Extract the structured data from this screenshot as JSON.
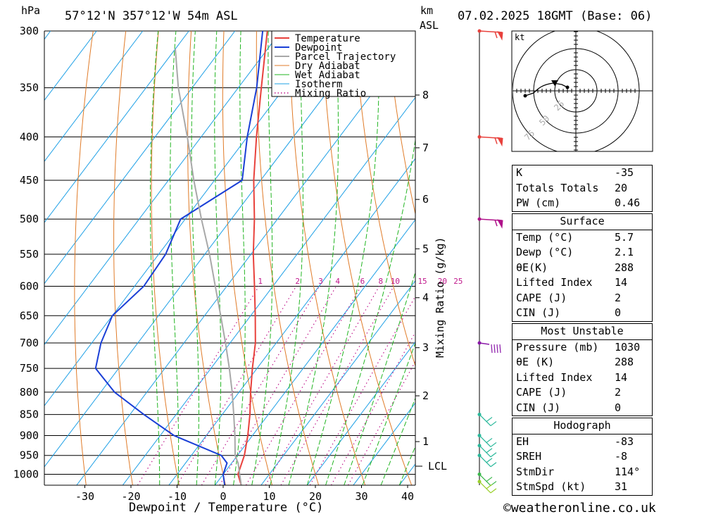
{
  "header": {
    "hpa_label": "hPa",
    "location": "57°12'N  357°12'W  54m  ASL",
    "km_label": "km",
    "asl_label": "ASL",
    "datetime": "07.02.2025  18GMT  (Base: 06)"
  },
  "chart_data": {
    "type": "line",
    "title": "57°12'N  357°12'W  54m  ASL",
    "xlabel": "Dewpoint / Temperature (°C)",
    "ylabel": "hPa",
    "xlim": [
      -38,
      42
    ],
    "ylim": [
      1030,
      300
    ],
    "pressure_ticks": [
      300,
      350,
      400,
      450,
      500,
      550,
      600,
      650,
      700,
      750,
      800,
      850,
      900,
      950,
      1000
    ],
    "temperature_ticks": [
      -30,
      -20,
      -10,
      0,
      10,
      20,
      30,
      40
    ],
    "height_ticks": [
      {
        "km": "1",
        "p": 915
      },
      {
        "km": "2",
        "p": 808
      },
      {
        "km": "3",
        "p": 709
      },
      {
        "km": "4",
        "p": 619
      },
      {
        "km": "5",
        "p": 542
      },
      {
        "km": "6",
        "p": 474
      },
      {
        "km": "7",
        "p": 412
      },
      {
        "km": "8",
        "p": 357
      }
    ],
    "lcl": {
      "label": "LCL",
      "p": 970
    },
    "right_axis_label": "Mixing Ratio (g/kg)",
    "mixing_ratio_labels": [
      "1",
      "2",
      "3",
      "4",
      "6",
      "8",
      "10",
      "15",
      "20",
      "25"
    ],
    "legend": [
      "Temperature",
      "Dewpoint",
      "Parcel Trajectory",
      "Dry Adiabat",
      "Wet Adiabat",
      "Isotherm",
      "Mixing Ratio"
    ],
    "legend_position": "top-right",
    "series": [
      {
        "name": "Temperature",
        "color": "#e8413c",
        "points": [
          [
            1030,
            5.7
          ],
          [
            1000,
            3.2
          ],
          [
            950,
            1.5
          ],
          [
            900,
            -1.0
          ],
          [
            850,
            -4.0
          ],
          [
            800,
            -7.5
          ],
          [
            750,
            -11.0
          ],
          [
            700,
            -14.5
          ],
          [
            650,
            -19.0
          ],
          [
            600,
            -24.0
          ],
          [
            550,
            -29.5
          ],
          [
            500,
            -35.0
          ],
          [
            450,
            -41.5
          ],
          [
            400,
            -48.0
          ],
          [
            350,
            -55.0
          ],
          [
            300,
            -63.0
          ]
        ]
      },
      {
        "name": "Dewpoint",
        "color": "#1a3fd6",
        "points": [
          [
            1030,
            2.1
          ],
          [
            1000,
            0.0
          ],
          [
            970,
            -1.0
          ],
          [
            950,
            -3.5
          ],
          [
            900,
            -17.0
          ],
          [
            850,
            -27.0
          ],
          [
            800,
            -37.0
          ],
          [
            750,
            -45.0
          ],
          [
            700,
            -48.0
          ],
          [
            650,
            -50.0
          ],
          [
            600,
            -48.0
          ],
          [
            550,
            -48.5
          ],
          [
            500,
            -51.0
          ],
          [
            450,
            -44.0
          ],
          [
            400,
            -50.0
          ],
          [
            350,
            -56.0
          ],
          [
            300,
            -64.0
          ]
        ]
      },
      {
        "name": "Parcel Trajectory",
        "color": "#a8a8a8",
        "points": [
          [
            1030,
            5.7
          ],
          [
            970,
            1.4
          ],
          [
            950,
            -0.5
          ],
          [
            900,
            -3.8
          ],
          [
            850,
            -7.5
          ],
          [
            800,
            -11.5
          ],
          [
            750,
            -16.0
          ],
          [
            700,
            -21.0
          ],
          [
            650,
            -26.5
          ],
          [
            600,
            -32.5
          ],
          [
            550,
            -39.0
          ],
          [
            500,
            -46.5
          ],
          [
            450,
            -54.5
          ],
          [
            400,
            -63.0
          ],
          [
            350,
            -73.0
          ],
          [
            315,
            -80.0
          ]
        ]
      }
    ],
    "wind_barbs": [
      {
        "p": 300,
        "color": "#e8413c"
      },
      {
        "p": 400,
        "color": "#e8413c"
      },
      {
        "p": 500,
        "color": "#b0128a"
      },
      {
        "p": 700,
        "color": "#8a18a8"
      },
      {
        "p": 850,
        "color": "#29b89a"
      },
      {
        "p": 900,
        "color": "#29b89a"
      },
      {
        "p": 925,
        "color": "#29b89a"
      },
      {
        "p": 950,
        "color": "#29b89a"
      },
      {
        "p": 1000,
        "color": "#3ab84a"
      },
      {
        "p": 1020,
        "color": "#9ad02a"
      }
    ],
    "hodograph": {
      "unit_label": "kt",
      "ring_labels": [
        "25",
        "50",
        "75"
      ]
    }
  },
  "indices": {
    "k": {
      "label": "K",
      "value": "-35"
    },
    "totals": {
      "label": "Totals Totals",
      "value": "20"
    },
    "pw": {
      "label": "PW (cm)",
      "value": "0.46"
    }
  },
  "surface": {
    "title": "Surface",
    "temp": {
      "label": "Temp (°C)",
      "value": "5.7"
    },
    "dewp": {
      "label": "Dewp (°C)",
      "value": "2.1"
    },
    "theta": {
      "label": "θE(K)",
      "value": "288"
    },
    "li": {
      "label": "Lifted Index",
      "value": "14"
    },
    "cape": {
      "label": "CAPE (J)",
      "value": "2"
    },
    "cin": {
      "label": "CIN (J)",
      "value": "0"
    }
  },
  "unstable": {
    "title": "Most Unstable",
    "pressure": {
      "label": "Pressure (mb)",
      "value": "1030"
    },
    "theta": {
      "label": "θE (K)",
      "value": "288"
    },
    "li": {
      "label": "Lifted Index",
      "value": "14"
    },
    "cape": {
      "label": "CAPE (J)",
      "value": "2"
    },
    "cin": {
      "label": "CIN (J)",
      "value": "0"
    }
  },
  "hodo_table": {
    "title": "Hodograph",
    "eh": {
      "label": "EH",
      "value": "-83"
    },
    "sreh": {
      "label": "SREH",
      "value": "-8"
    },
    "stmdir": {
      "label": "StmDir",
      "value": "114°"
    },
    "stmspd": {
      "label": "StmSpd (kt)",
      "value": "31"
    }
  },
  "footer": {
    "copyright": "©weatheronline.co.uk"
  }
}
